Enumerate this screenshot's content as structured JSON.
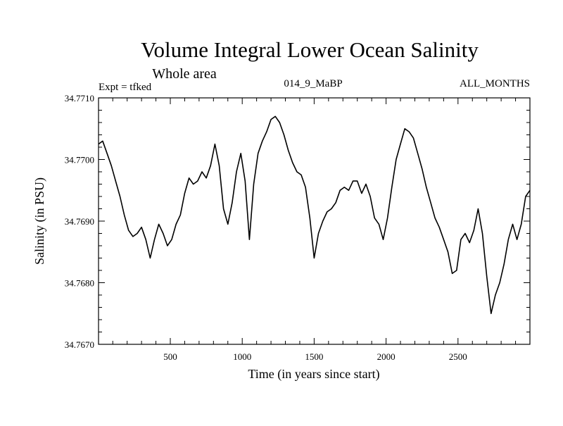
{
  "chart_data": {
    "type": "line",
    "title": "Volume Integral Lower Ocean Salinity",
    "subtitle": "Whole area",
    "annotations": {
      "left": "Expt = tfked",
      "center": "014_9_MaBP",
      "right": "ALL_MONTHS"
    },
    "xlabel": "Time (in years since start)",
    "ylabel": "Salinity (in PSU)",
    "xlim": [
      1,
      3000
    ],
    "ylim": [
      34.767,
      34.771
    ],
    "x_ticks": [
      500,
      1000,
      1500,
      2000,
      2500
    ],
    "x_tick_labels": [
      "500",
      "1000",
      "1500",
      "2000",
      "2500"
    ],
    "y_ticks": [
      34.767,
      34.768,
      34.769,
      34.77,
      34.771
    ],
    "y_tick_labels": [
      "34.7670",
      "34.7680",
      "34.7690",
      "34.7700",
      "34.7710"
    ],
    "grid": false,
    "series": [
      {
        "color": "#000000",
        "x": [
          1,
          30,
          60,
          90,
          120,
          150,
          180,
          210,
          240,
          270,
          300,
          330,
          360,
          390,
          420,
          450,
          480,
          510,
          540,
          570,
          600,
          630,
          660,
          690,
          720,
          750,
          780,
          810,
          840,
          870,
          900,
          930,
          960,
          990,
          1020,
          1050,
          1080,
          1110,
          1140,
          1170,
          1200,
          1230,
          1260,
          1290,
          1320,
          1350,
          1380,
          1410,
          1440,
          1470,
          1500,
          1530,
          1560,
          1590,
          1620,
          1650,
          1680,
          1710,
          1740,
          1770,
          1800,
          1830,
          1860,
          1890,
          1920,
          1950,
          1980,
          2010,
          2040,
          2070,
          2100,
          2130,
          2160,
          2190,
          2220,
          2250,
          2280,
          2310,
          2340,
          2370,
          2400,
          2430,
          2460,
          2490,
          2520,
          2550,
          2580,
          2610,
          2640,
          2670,
          2700,
          2730,
          2760,
          2790,
          2820,
          2850,
          2880,
          2910,
          2940,
          2970,
          3000
        ],
        "values": [
          34.77025,
          34.7703,
          34.7701,
          34.7699,
          34.76965,
          34.7694,
          34.7691,
          34.76885,
          34.76875,
          34.7688,
          34.7689,
          34.7687,
          34.7684,
          34.7687,
          34.76895,
          34.7688,
          34.7686,
          34.7687,
          34.76895,
          34.7691,
          34.76945,
          34.7697,
          34.7696,
          34.76965,
          34.7698,
          34.7697,
          34.7699,
          34.77025,
          34.7699,
          34.7692,
          34.76895,
          34.7693,
          34.7698,
          34.7701,
          34.76965,
          34.7687,
          34.7696,
          34.7701,
          34.7703,
          34.77045,
          34.77065,
          34.7707,
          34.7706,
          34.7704,
          34.77015,
          34.76995,
          34.7698,
          34.76975,
          34.76955,
          34.76905,
          34.7684,
          34.7688,
          34.769,
          34.76915,
          34.7692,
          34.7693,
          34.7695,
          34.76955,
          34.7695,
          34.76965,
          34.76965,
          34.76945,
          34.7696,
          34.7694,
          34.76905,
          34.76895,
          34.7687,
          34.76905,
          34.76955,
          34.77,
          34.77025,
          34.7705,
          34.77045,
          34.77035,
          34.7701,
          34.76985,
          34.76955,
          34.7693,
          34.76905,
          34.7689,
          34.7687,
          34.7685,
          34.76815,
          34.7682,
          34.7687,
          34.7688,
          34.76865,
          34.76885,
          34.7692,
          34.7688,
          34.7681,
          34.7675,
          34.7678,
          34.768,
          34.7683,
          34.7687,
          34.76895,
          34.7687,
          34.76895,
          34.7694,
          34.7695
        ]
      }
    ]
  }
}
